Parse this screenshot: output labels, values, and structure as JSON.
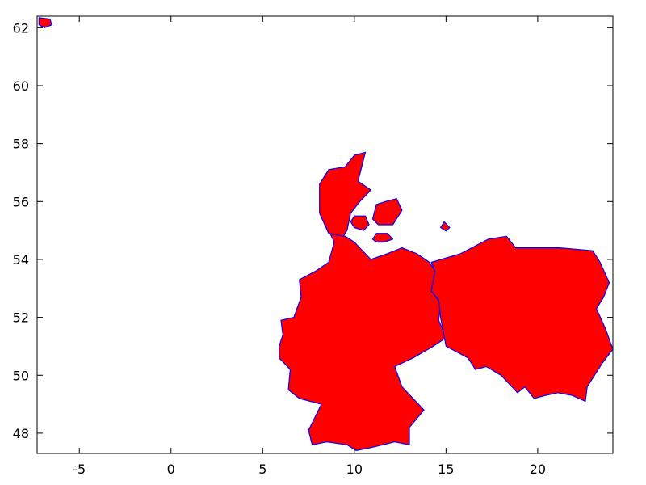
{
  "chart_data": {
    "type": "map",
    "x_axis": {
      "ticks": [
        -5,
        0,
        5,
        10,
        15,
        20
      ],
      "labels": [
        "-5",
        "0",
        "5",
        "10",
        "15",
        "20"
      ],
      "range": [
        -7.3,
        24.1
      ]
    },
    "y_axis": {
      "ticks": [
        48,
        50,
        52,
        54,
        56,
        58,
        60,
        62
      ],
      "labels": [
        "48",
        "50",
        "52",
        "54",
        "56",
        "58",
        "60",
        "62"
      ],
      "range": [
        47.3,
        62.4
      ]
    },
    "grid": false,
    "fill_color": "#ff0000",
    "stroke_color": "#0000ff",
    "regions": [
      {
        "name": "germany",
        "lonlat": [
          [
            5.9,
            51.0
          ],
          [
            6.1,
            51.4
          ],
          [
            6.0,
            51.9
          ],
          [
            6.7,
            52.0
          ],
          [
            7.1,
            52.7
          ],
          [
            7.0,
            53.3
          ],
          [
            7.9,
            53.6
          ],
          [
            8.6,
            53.9
          ],
          [
            8.9,
            54.6
          ],
          [
            8.6,
            55.0
          ],
          [
            9.5,
            54.8
          ],
          [
            10.0,
            54.6
          ],
          [
            10.9,
            54.0
          ],
          [
            11.8,
            54.2
          ],
          [
            12.6,
            54.4
          ],
          [
            13.4,
            54.2
          ],
          [
            14.1,
            53.9
          ],
          [
            14.4,
            53.6
          ],
          [
            14.2,
            52.9
          ],
          [
            14.7,
            52.5
          ],
          [
            14.6,
            51.9
          ],
          [
            15.0,
            51.3
          ],
          [
            14.3,
            51.0
          ],
          [
            13.2,
            50.6
          ],
          [
            12.2,
            50.3
          ],
          [
            12.6,
            49.6
          ],
          [
            13.8,
            48.8
          ],
          [
            13.0,
            48.2
          ],
          [
            13.0,
            47.6
          ],
          [
            12.2,
            47.7
          ],
          [
            10.9,
            47.5
          ],
          [
            10.1,
            47.4
          ],
          [
            9.6,
            47.6
          ],
          [
            8.5,
            47.7
          ],
          [
            7.7,
            47.6
          ],
          [
            7.5,
            48.1
          ],
          [
            8.2,
            49.0
          ],
          [
            7.0,
            49.2
          ],
          [
            6.4,
            49.5
          ],
          [
            6.5,
            50.2
          ],
          [
            5.9,
            50.6
          ]
        ]
      },
      {
        "name": "poland",
        "lonlat": [
          [
            14.2,
            53.9
          ],
          [
            15.8,
            54.2
          ],
          [
            17.3,
            54.7
          ],
          [
            18.3,
            54.8
          ],
          [
            18.8,
            54.4
          ],
          [
            19.6,
            54.4
          ],
          [
            21.2,
            54.4
          ],
          [
            23.0,
            54.3
          ],
          [
            23.4,
            53.9
          ],
          [
            23.9,
            53.2
          ],
          [
            23.6,
            52.7
          ],
          [
            23.2,
            52.3
          ],
          [
            23.7,
            51.6
          ],
          [
            24.1,
            50.9
          ],
          [
            23.5,
            50.4
          ],
          [
            22.7,
            49.6
          ],
          [
            22.6,
            49.1
          ],
          [
            21.9,
            49.3
          ],
          [
            21.1,
            49.4
          ],
          [
            20.4,
            49.3
          ],
          [
            19.8,
            49.2
          ],
          [
            19.3,
            49.6
          ],
          [
            18.9,
            49.4
          ],
          [
            18.0,
            50.0
          ],
          [
            17.2,
            50.3
          ],
          [
            16.6,
            50.2
          ],
          [
            16.2,
            50.6
          ],
          [
            15.0,
            51.0
          ],
          [
            14.7,
            52.0
          ],
          [
            14.6,
            52.6
          ],
          [
            14.2,
            52.9
          ],
          [
            14.4,
            53.6
          ]
        ]
      },
      {
        "name": "jutland",
        "lonlat": [
          [
            8.6,
            54.9
          ],
          [
            8.1,
            55.6
          ],
          [
            8.1,
            56.6
          ],
          [
            8.6,
            57.1
          ],
          [
            9.5,
            57.2
          ],
          [
            10.0,
            57.6
          ],
          [
            10.6,
            57.7
          ],
          [
            10.4,
            57.2
          ],
          [
            10.2,
            56.7
          ],
          [
            10.9,
            56.4
          ],
          [
            10.3,
            56.0
          ],
          [
            9.8,
            55.6
          ],
          [
            9.6,
            55.0
          ],
          [
            9.4,
            54.8
          ]
        ]
      },
      {
        "name": "zealand",
        "lonlat": [
          [
            11.0,
            55.4
          ],
          [
            11.2,
            55.9
          ],
          [
            11.7,
            56.0
          ],
          [
            12.3,
            56.1
          ],
          [
            12.6,
            55.7
          ],
          [
            12.1,
            55.2
          ],
          [
            11.7,
            55.2
          ],
          [
            11.3,
            55.2
          ]
        ]
      },
      {
        "name": "funen",
        "lonlat": [
          [
            9.8,
            55.3
          ],
          [
            10.0,
            55.5
          ],
          [
            10.6,
            55.5
          ],
          [
            10.8,
            55.2
          ],
          [
            10.5,
            55.0
          ],
          [
            10.0,
            55.1
          ]
        ]
      },
      {
        "name": "lolland",
        "lonlat": [
          [
            11.0,
            54.7
          ],
          [
            11.2,
            54.9
          ],
          [
            11.8,
            54.9
          ],
          [
            12.1,
            54.7
          ],
          [
            11.6,
            54.6
          ],
          [
            11.2,
            54.6
          ]
        ]
      },
      {
        "name": "bornholm",
        "lonlat": [
          [
            14.7,
            55.1
          ],
          [
            14.9,
            55.3
          ],
          [
            15.2,
            55.1
          ],
          [
            15.0,
            54.98
          ]
        ]
      },
      {
        "name": "faroe",
        "lonlat": [
          [
            -7.2,
            62.35
          ],
          [
            -6.6,
            62.3
          ],
          [
            -6.5,
            62.1
          ],
          [
            -6.9,
            62.0
          ],
          [
            -7.2,
            62.1
          ]
        ]
      }
    ]
  }
}
